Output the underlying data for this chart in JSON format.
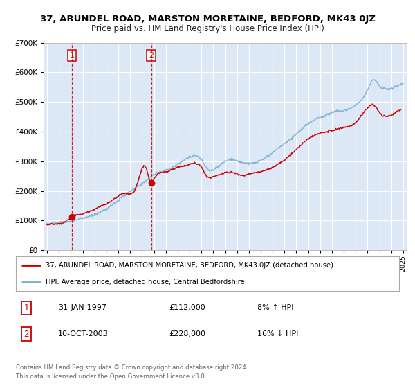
{
  "title": "37, ARUNDEL ROAD, MARSTON MORETAINE, BEDFORD, MK43 0JZ",
  "subtitle": "Price paid vs. HM Land Registry's House Price Index (HPI)",
  "bg_color": "#f0f4fa",
  "plot_bg_color": "#dce8f5",
  "grid_color": "#ffffff",
  "red_line_color": "#cc0000",
  "blue_line_color": "#7ab0d4",
  "sale1_x": 1997.08,
  "sale1_y": 112000,
  "sale1_label": "1",
  "sale2_x": 2003.78,
  "sale2_y": 228000,
  "sale2_label": "2",
  "legend_entry1": "37, ARUNDEL ROAD, MARSTON MORETAINE, BEDFORD, MK43 0JZ (detached house)",
  "legend_entry2": "HPI: Average price, detached house, Central Bedfordshire",
  "table_row1": [
    "1",
    "31-JAN-1997",
    "£112,000",
    "8% ↑ HPI"
  ],
  "table_row2": [
    "2",
    "10-OCT-2003",
    "£228,000",
    "16% ↓ HPI"
  ],
  "footer": "Contains HM Land Registry data © Crown copyright and database right 2024.\nThis data is licensed under the Open Government Licence v3.0.",
  "ylim": [
    0,
    700000
  ],
  "yticks": [
    0,
    100000,
    200000,
    300000,
    400000,
    500000,
    600000,
    700000
  ],
  "ytick_labels": [
    "£0",
    "£100K",
    "£200K",
    "£300K",
    "£400K",
    "£500K",
    "£600K",
    "£700K"
  ],
  "xlim_start": 1994.7,
  "xlim_end": 2025.3
}
